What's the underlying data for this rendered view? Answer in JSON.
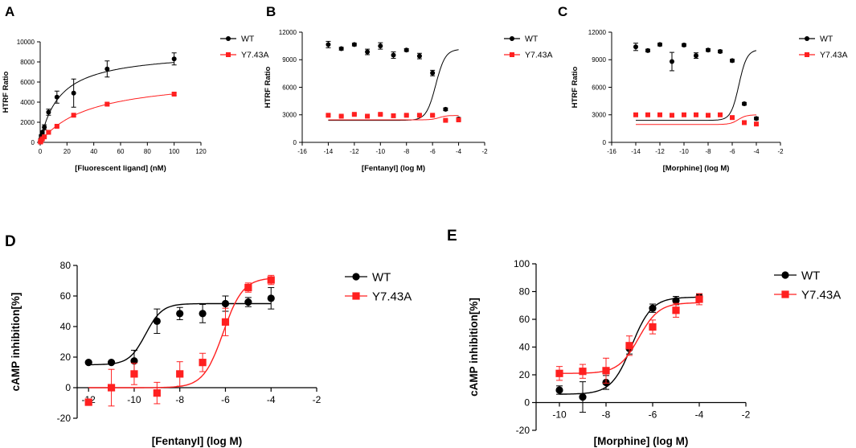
{
  "figure": {
    "panels": [
      {
        "letter": "A"
      },
      {
        "letter": "B"
      },
      {
        "letter": "C"
      },
      {
        "letter": "D"
      },
      {
        "letter": "E"
      }
    ]
  },
  "colors": {
    "wt": "#000000",
    "mutant": "#ff2020"
  },
  "chart_data": [
    {
      "panel": "A",
      "type": "scatter",
      "xlabel": "[Fluorescent ligand] (nM)",
      "ylabel": "HTRF Ratio",
      "xlim": [
        0,
        120
      ],
      "ylim": [
        0,
        10000
      ],
      "xticks": [
        0,
        20,
        40,
        60,
        80,
        100,
        120
      ],
      "yticks": [
        0,
        2000,
        4000,
        6000,
        8000,
        10000
      ],
      "legend": [
        "WT",
        "Y7.43A"
      ],
      "series": [
        {
          "name": "WT",
          "x": [
            0.2,
            0.4,
            0.8,
            1.6,
            3.1,
            6.25,
            12.5,
            25,
            50,
            100
          ],
          "y": [
            100,
            300,
            650,
            1000,
            1500,
            3000,
            4500,
            4900,
            7300,
            8300
          ],
          "err": [
            50,
            80,
            100,
            150,
            250,
            300,
            600,
            1400,
            800,
            600
          ],
          "fit": {
            "model": "hyperbola",
            "bmax": 9100,
            "kd": 14.5
          }
        },
        {
          "name": "Y7.43A",
          "x": [
            0.2,
            0.4,
            0.8,
            1.6,
            3.1,
            6.25,
            12.5,
            25,
            50,
            100
          ],
          "y": [
            40,
            100,
            200,
            350,
            550,
            1000,
            1600,
            2700,
            3800,
            4800
          ],
          "err": [
            20,
            20,
            30,
            40,
            50,
            60,
            80,
            100,
            120,
            120
          ],
          "fit": {
            "model": "hyperbola",
            "bmax": 6600,
            "kd": 37
          }
        }
      ]
    },
    {
      "panel": "B",
      "type": "scatter",
      "xlabel": "[Fentanyl] (log M)",
      "ylabel": "HTRF Ratio",
      "xlim": [
        -16,
        -2
      ],
      "ylim": [
        0,
        12000
      ],
      "xticks": [
        -16,
        -14,
        -12,
        -10,
        -8,
        -6,
        -4,
        -2
      ],
      "yticks": [
        0,
        3000,
        6000,
        9000,
        12000
      ],
      "legend": [
        "WT",
        "Y7.43A"
      ],
      "series": [
        {
          "name": "WT",
          "x": [
            -14,
            -13,
            -12,
            -11,
            -10,
            -9,
            -8,
            -7,
            -6,
            -5,
            -4
          ],
          "y": [
            10650,
            10200,
            10650,
            9850,
            10500,
            9500,
            10050,
            9400,
            7550,
            3600,
            2550
          ],
          "err": [
            350,
            150,
            150,
            300,
            350,
            350,
            150,
            300,
            300,
            150,
            150
          ],
          "fit": {
            "model": "sigmoid",
            "top": 10150,
            "bottom": 2400,
            "logec50": -5.75,
            "hill": 1.2
          }
        },
        {
          "name": "Y7.43A",
          "x": [
            -14,
            -13,
            -12,
            -11,
            -10,
            -9,
            -8,
            -7,
            -6,
            -5,
            -4
          ],
          "y": [
            2950,
            2850,
            3050,
            2850,
            3050,
            2900,
            2950,
            2950,
            2950,
            2400,
            2450
          ],
          "err": [
            80,
            60,
            60,
            60,
            60,
            60,
            60,
            60,
            60,
            60,
            60
          ],
          "fit": {
            "model": "sigmoid",
            "top": 2930,
            "bottom": 2450,
            "logec50": -5.5,
            "hill": 1.5
          }
        }
      ]
    },
    {
      "panel": "C",
      "type": "scatter",
      "xlabel": "[Morphine] (log M)",
      "ylabel": "HTRF Ratio",
      "xlim": [
        -16,
        -2
      ],
      "ylim": [
        0,
        12000
      ],
      "xticks": [
        -16,
        -14,
        -12,
        -10,
        -8,
        -6,
        -4,
        -2
      ],
      "yticks": [
        0,
        3000,
        6000,
        9000,
        12000
      ],
      "legend": [
        "WT",
        "Y7.43A"
      ],
      "series": [
        {
          "name": "WT",
          "x": [
            -14,
            -13,
            -12,
            -11,
            -10,
            -9,
            -8,
            -7,
            -6,
            -5,
            -4
          ],
          "y": [
            10400,
            10000,
            10650,
            8800,
            10600,
            9450,
            10050,
            9900,
            8900,
            4200,
            2600
          ],
          "err": [
            400,
            150,
            150,
            1000,
            150,
            300,
            150,
            150,
            150,
            150,
            150
          ],
          "fit": {
            "model": "sigmoid",
            "top": 10100,
            "bottom": 2400,
            "logec50": -5.45,
            "hill": 1.3
          }
        },
        {
          "name": "Y7.43A",
          "x": [
            -14,
            -13,
            -12,
            -11,
            -10,
            -9,
            -8,
            -7,
            -6,
            -5,
            -4
          ],
          "y": [
            3000,
            3000,
            3000,
            2950,
            3000,
            3000,
            2950,
            3000,
            2700,
            2150,
            2000
          ],
          "err": [
            60,
            60,
            60,
            60,
            60,
            60,
            60,
            60,
            60,
            60,
            60
          ],
          "fit": {
            "model": "sigmoid",
            "top": 3000,
            "bottom": 1950,
            "logec50": -5.5,
            "hill": 1.3
          }
        }
      ]
    },
    {
      "panel": "D",
      "type": "scatter",
      "xlabel": "[Fentanyl] (log M)",
      "ylabel": "cAMP inhibition[%]",
      "xlim": [
        -12.5,
        -2
      ],
      "ylim": [
        -20,
        80
      ],
      "xticks": [
        -12,
        -10,
        -8,
        -6,
        -4,
        -2
      ],
      "yticks": [
        -20,
        0,
        20,
        40,
        60,
        80
      ],
      "legend": [
        "WT",
        "Y7.43A"
      ],
      "series": [
        {
          "name": "WT",
          "x": [
            -12,
            -11,
            -10,
            -9,
            -8,
            -7,
            -6,
            -5,
            -4
          ],
          "y": [
            16.5,
            16.5,
            17.5,
            43.5,
            48.5,
            48.5,
            55,
            56,
            58.5
          ],
          "err": [
            0.7,
            0.7,
            7,
            8,
            4,
            6,
            5,
            3,
            7
          ],
          "fit": {
            "model": "sigmoid",
            "top": 55,
            "bottom": 15,
            "logec50": -9.5,
            "hill": 1.2
          }
        },
        {
          "name": "Y7.43A",
          "x": [
            -12,
            -11,
            -10,
            -9,
            -8,
            -7,
            -6,
            -5,
            -4
          ],
          "y": [
            -9.5,
            0,
            9,
            -3.5,
            9,
            16.5,
            43,
            65.5,
            70.5
          ],
          "err": [
            2,
            12,
            7,
            7,
            8,
            6,
            9,
            3,
            3
          ],
          "fit": {
            "model": "sigmoid",
            "top": 72,
            "bottom": 0,
            "logec50": -6.1,
            "hill": 1.0
          }
        }
      ]
    },
    {
      "panel": "E",
      "type": "scatter",
      "xlabel": "[Morphine] (log M)",
      "ylabel": "cAMP inhibition[%]",
      "xlim": [
        -11,
        -2
      ],
      "ylim": [
        -20,
        100
      ],
      "xticks": [
        -10,
        -8,
        -6,
        -4,
        -2
      ],
      "yticks": [
        -20,
        0,
        20,
        40,
        60,
        80,
        100
      ],
      "legend": [
        "WT",
        "Y7.43A"
      ],
      "series": [
        {
          "name": "WT",
          "x": [
            -10,
            -9,
            -8,
            -7,
            -6,
            -5,
            -4
          ],
          "y": [
            9,
            4,
            14.5,
            39,
            68,
            73.5,
            76
          ],
          "err": [
            3,
            11,
            5,
            4,
            3,
            3,
            2
          ],
          "fit": {
            "model": "sigmoid",
            "top": 76,
            "bottom": 6,
            "logec50": -6.9,
            "hill": 1.0
          }
        },
        {
          "name": "Y7.43A",
          "x": [
            -10,
            -9,
            -8,
            -7,
            -6,
            -5,
            -4
          ],
          "y": [
            21,
            22.5,
            23,
            41,
            54.5,
            66.5,
            74.5
          ],
          "err": [
            5,
            5,
            9,
            7,
            5,
            5,
            4
          ],
          "fit": {
            "model": "sigmoid",
            "top": 72,
            "bottom": 21,
            "logec50": -6.6,
            "hill": 1.0
          }
        }
      ]
    }
  ]
}
